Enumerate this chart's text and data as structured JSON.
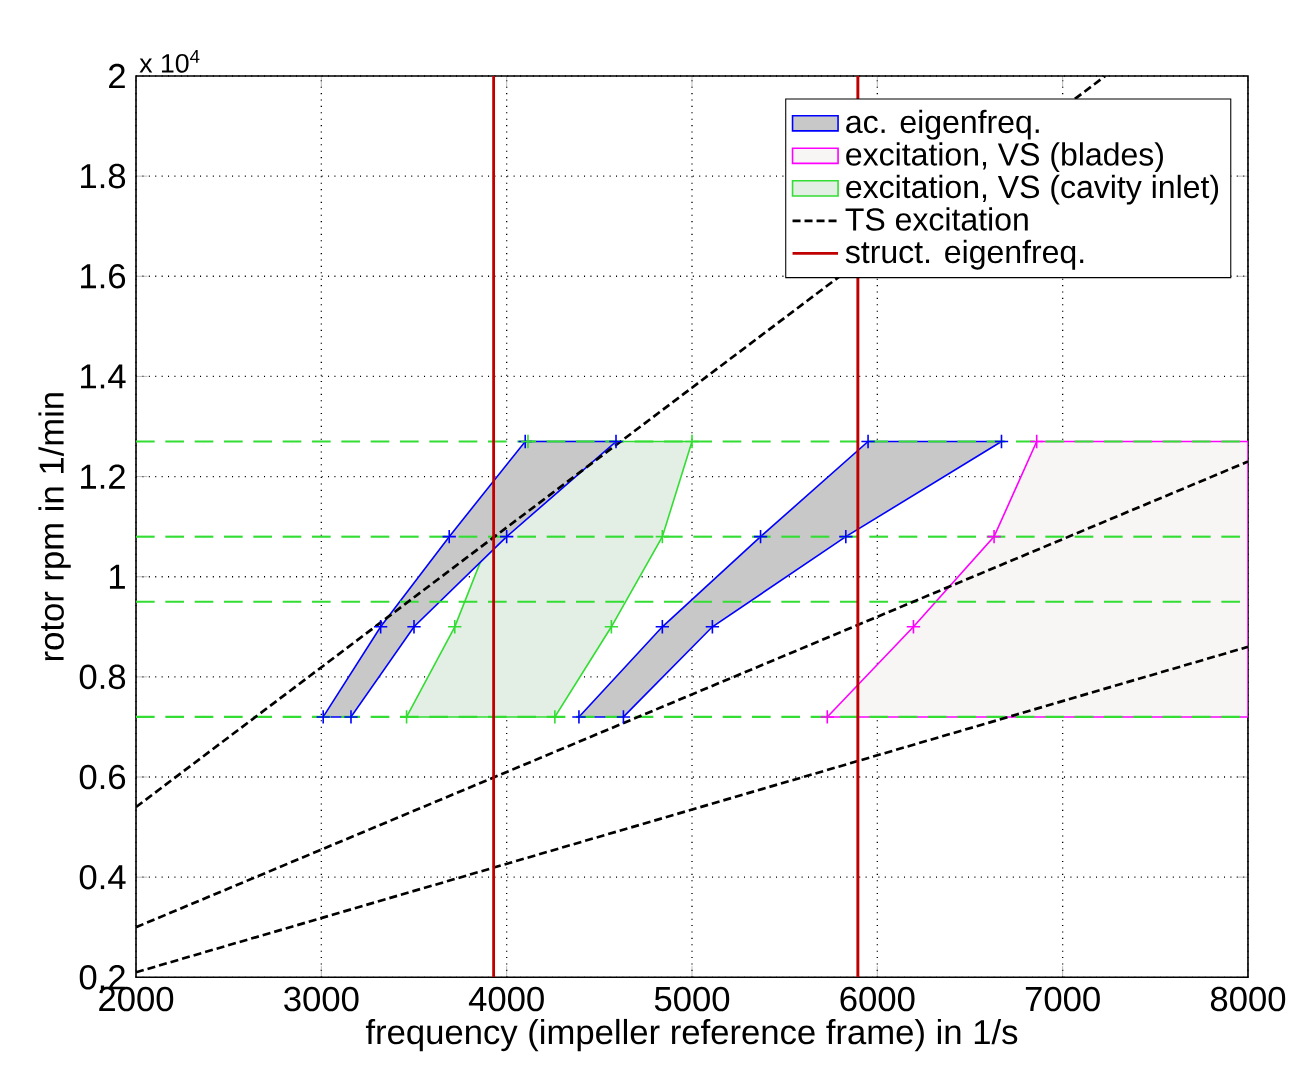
{
  "chart_data": {
    "type": "line",
    "xlabel": "frequency (impeller reference frame) in 1/s",
    "ylabel": "rotor rpm in 1/min",
    "annotations": [
      "x 10$^{4}$"
    ],
    "xlim": [
      2000,
      8000
    ],
    "xticks": [
      2000,
      3000,
      4000,
      5000,
      6000,
      7000,
      8000
    ],
    "ylim": [
      0.2,
      2
    ],
    "yticks": [
      0.2,
      0.4,
      0.6,
      0.8,
      1,
      1.2,
      1.4,
      1.6,
      1.8,
      2
    ],
    "grid": true,
    "legend": "top right",
    "series": [
      {
        "type": "area",
        "name": "ac. eigenfreq.",
        "color": "#c8c8c8",
        "x": [
          3010,
          3320,
          3690,
          4100,
          4590,
          4000,
          3500,
          3160
        ],
        "values": [
          0.72,
          0.9,
          1.08,
          1.27,
          1.27,
          1.08,
          0.9,
          0.72
        ]
      },
      {
        "type": "scatter",
        "color": "#0000ff",
        "marker": "cross",
        "x": [
          3010,
          3320,
          3690,
          4100,
          4590,
          4000,
          3500,
          3160
        ],
        "values": [
          0.72,
          0.9,
          1.08,
          1.27,
          1.27,
          1.08,
          0.9,
          0.72
        ]
      },
      {
        "type": "area",
        "color": "#c8c8c8",
        "x": [
          4390,
          4840,
          5370,
          5950,
          6670,
          5830,
          5110,
          4630
        ],
        "values": [
          0.72,
          0.9,
          1.08,
          1.27,
          1.27,
          1.08,
          0.9,
          0.72
        ]
      },
      {
        "type": "scatter",
        "color": "#0000ff",
        "marker": "cross",
        "x": [
          4390,
          4840,
          5370,
          5950,
          6670,
          5830,
          5110,
          4630
        ],
        "values": [
          0.72,
          0.9,
          1.08,
          1.27,
          1.27,
          1.08,
          0.9,
          0.72
        ]
      },
      {
        "type": "area",
        "name": "excitation, VS (blades)",
        "color": "#f7f6f5",
        "x": [
          5730,
          6195,
          6630,
          6860,
          8000,
          8000
        ],
        "values": [
          0.72,
          0.9,
          1.08,
          1.27,
          1.27,
          0.72
        ]
      },
      {
        "type": "scatter",
        "color": "#ff00ff",
        "marker": "cross",
        "x": [
          5730,
          6195,
          6630,
          6860
        ],
        "values": [
          0.72,
          0.9,
          1.08,
          1.27
        ]
      },
      {
        "type": "area",
        "name": "excitation, VS (cavity inlet)",
        "color": "#e3efe4",
        "x": [
          3460,
          3720,
          4115,
          5000,
          4840,
          4565,
          4260
        ],
        "values": [
          0.72,
          0.9,
          1.27,
          1.27,
          1.08,
          0.9,
          0.72
        ]
      },
      {
        "type": "scatter",
        "color": "#33dd33",
        "marker": "cross",
        "x": [
          3460,
          3720,
          4115,
          5000,
          4840,
          4565,
          4260
        ],
        "values": [
          0.72,
          0.9,
          1.27,
          1.27,
          1.08,
          0.9,
          0.72
        ]
      },
      {
        "type": "line",
        "name": "TS excitation",
        "color": "#000000",
        "line_style": "dashed",
        "x": [
          2000,
          7230
        ],
        "values": [
          0.54,
          2.0
        ]
      },
      {
        "color": "#000000",
        "line_style": "dashed",
        "x": [
          2000,
          8000
        ],
        "values": [
          0.3,
          1.23
        ]
      },
      {
        "color": "#000000",
        "line_style": "dashed",
        "x": [
          2000,
          8000
        ],
        "values": [
          0.21,
          0.86
        ]
      },
      {
        "type": "line",
        "name": "struct. eigenfreq.",
        "color": "#c00000",
        "line_style": "solid",
        "x": [
          3930,
          3930
        ],
        "values": [
          0.2,
          2
        ]
      },
      {
        "type": "line",
        "color": "#c00000",
        "line_style": "solid",
        "x": [
          5895,
          5895
        ],
        "values": [
          0.2,
          2
        ]
      }
    ],
    "ref_lines": [
      {
        "axis": "y",
        "value": 0.72,
        "color": "#33dd33",
        "line_style": "dashed"
      },
      {
        "axis": "y",
        "value": 0.95,
        "color": "#33dd33",
        "line_style": "dashed"
      },
      {
        "axis": "y",
        "value": 1.08,
        "color": "#33dd33",
        "line_style": "dashed"
      },
      {
        "axis": "y",
        "value": 1.27,
        "color": "#33dd33",
        "line_style": "dashed"
      }
    ]
  }
}
